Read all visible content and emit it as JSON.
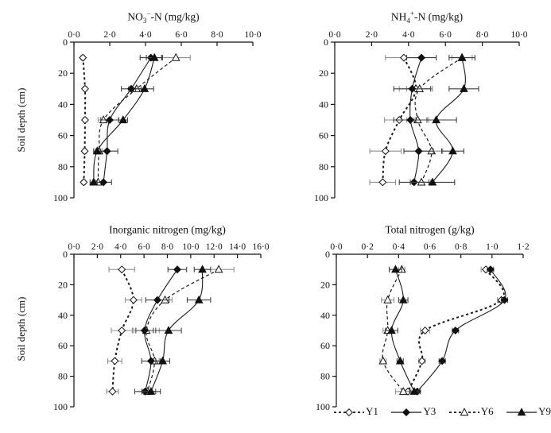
{
  "figure": {
    "y_axis_label": "Soil depth (cm)",
    "depth_ticks": {
      "values": [
        0,
        20,
        40,
        60,
        80,
        100
      ],
      "labels": [
        "0",
        "20",
        "40",
        "60",
        "80",
        "100"
      ]
    },
    "colors": {
      "line": "#1a1a1a",
      "error_open": "#8f8f8f",
      "error_filled": "#3f3f3f",
      "background": "#ffffff"
    }
  },
  "legend": {
    "items": [
      {
        "label": "Y1",
        "marker": "diamond",
        "fill": "open",
        "line": "dashed"
      },
      {
        "label": "Y3",
        "marker": "diamond",
        "fill": "filled",
        "line": "solid"
      },
      {
        "label": "Y6",
        "marker": "triangle",
        "fill": "open",
        "line": "dashed"
      },
      {
        "label": "Y9",
        "marker": "triangle",
        "fill": "filled",
        "line": "solid"
      }
    ]
  },
  "chart_data": [
    {
      "type": "line",
      "title": {
        "pre": "NO",
        "sub": "3",
        "sup": "−",
        "post": "-N (mg/kg)"
      },
      "xlabel": "NO3--N (mg/kg)",
      "ylabel": "Soil depth (cm)",
      "xlim": [
        0,
        10
      ],
      "ylim": [
        0,
        100
      ],
      "x_ticks": {
        "values": [
          0,
          2,
          4,
          6,
          8,
          10
        ],
        "labels": [
          "0·0",
          "2·0",
          "4·0",
          "6·0",
          "8·0",
          "10·0"
        ]
      },
      "depths": [
        10,
        30,
        50,
        70,
        90
      ],
      "series": [
        {
          "name": "Y1",
          "values": [
            0.5,
            0.62,
            0.62,
            0.6,
            0.55
          ],
          "errors": [
            0.1,
            0.1,
            0.1,
            0.1,
            0.1
          ]
        },
        {
          "name": "Y3",
          "values": [
            4.3,
            3.2,
            2.0,
            1.85,
            1.65
          ],
          "errors": [
            0.6,
            0.55,
            0.5,
            0.6,
            0.45
          ]
        },
        {
          "name": "Y6",
          "values": [
            5.7,
            3.5,
            1.65,
            1.4,
            1.35
          ],
          "errors": [
            0.8,
            0.45,
            0.3,
            0.2,
            0.25
          ]
        },
        {
          "name": "Y9",
          "values": [
            4.5,
            3.95,
            2.75,
            1.3,
            1.1
          ],
          "errors": [
            0.45,
            0.5,
            0.25,
            0.2,
            0.2
          ]
        }
      ]
    },
    {
      "type": "line",
      "title": {
        "pre": "NH",
        "sub": "4",
        "sup": "+",
        "post": "-N (mg/kg)"
      },
      "xlabel": "NH4+-N (mg/kg)",
      "ylabel": "Soil depth (cm)",
      "xlim": [
        0,
        10
      ],
      "ylim": [
        0,
        100
      ],
      "x_ticks": {
        "values": [
          0,
          2,
          4,
          6,
          8,
          10
        ],
        "labels": [
          "0·0",
          "2·0",
          "4·0",
          "6·0",
          "8·0",
          "10·0"
        ]
      },
      "depths": [
        10,
        30,
        50,
        70,
        90
      ],
      "series": [
        {
          "name": "Y1",
          "values": [
            3.75,
            4.4,
            3.5,
            2.75,
            2.6
          ],
          "errors": [
            1.0,
            0.9,
            0.8,
            0.85,
            0.7
          ]
        },
        {
          "name": "Y3",
          "values": [
            4.7,
            4.2,
            4.1,
            4.55,
            4.3
          ],
          "errors": [
            0.8,
            1.0,
            0.9,
            0.8,
            0.8
          ]
        },
        {
          "name": "Y6",
          "values": [
            6.9,
            4.6,
            4.5,
            5.25,
            4.7
          ],
          "errors": [
            0.55,
            0.7,
            0.6,
            0.6,
            0.5
          ]
        },
        {
          "name": "Y9",
          "values": [
            6.9,
            7.0,
            5.5,
            6.4,
            5.3
          ],
          "errors": [
            0.7,
            0.8,
            1.1,
            0.6,
            1.2
          ]
        }
      ]
    },
    {
      "type": "line",
      "title": {
        "pre": "Inorganic nitrogen (mg/kg)",
        "sub": "",
        "sup": "",
        "post": ""
      },
      "xlabel": "Inorganic nitrogen (mg/kg)",
      "ylabel": "Soil depth (cm)",
      "xlim": [
        0,
        16
      ],
      "ylim": [
        0,
        100
      ],
      "x_ticks": {
        "values": [
          0,
          2,
          4,
          6,
          8,
          10,
          12,
          14,
          16
        ],
        "labels": [
          "0·0",
          "2·0",
          "4·0",
          "6·0",
          "8·0",
          "10·0",
          "12·0",
          "14·0",
          "16·0"
        ]
      },
      "depths": [
        10,
        30,
        50,
        70,
        90
      ],
      "series": [
        {
          "name": "Y1",
          "values": [
            4.1,
            5.1,
            4.1,
            3.5,
            3.3
          ],
          "errors": [
            1.1,
            0.7,
            0.9,
            0.6,
            0.5
          ]
        },
        {
          "name": "Y3",
          "values": [
            8.85,
            7.15,
            6.05,
            6.6,
            6.1
          ],
          "errors": [
            0.8,
            1.0,
            0.75,
            0.8,
            0.9
          ]
        },
        {
          "name": "Y6",
          "values": [
            12.4,
            7.8,
            6.2,
            6.9,
            6.3
          ],
          "errors": [
            1.3,
            0.6,
            1.1,
            0.4,
            0.4
          ]
        },
        {
          "name": "Y9",
          "values": [
            11.0,
            10.7,
            8.1,
            7.6,
            6.6
          ],
          "errors": [
            0.7,
            1.0,
            1.1,
            0.6,
            0.8
          ]
        }
      ]
    },
    {
      "type": "line",
      "title": {
        "pre": "Total nitrogen (g/kg)",
        "sub": "",
        "sup": "",
        "post": ""
      },
      "xlabel": "Total nitrogen (g/kg)",
      "ylabel": "Soil depth (cm)",
      "xlim": [
        0,
        1.2
      ],
      "ylim": [
        0,
        100
      ],
      "x_ticks": {
        "values": [
          0,
          0.2,
          0.4,
          0.6,
          0.8,
          1.0,
          1.2
        ],
        "labels": [
          "0·0",
          "0·2",
          "0·4",
          "0·6",
          "0·8",
          "1·0",
          "1·2"
        ]
      },
      "depths": [
        10,
        30,
        50,
        70,
        90
      ],
      "series": [
        {
          "name": "Y1",
          "values": [
            0.96,
            1.06,
            0.57,
            0.55,
            0.46
          ],
          "errors": [
            0.03,
            0.025,
            0.03,
            0.02,
            0.04
          ]
        },
        {
          "name": "Y3",
          "values": [
            0.99,
            1.08,
            0.765,
            0.68,
            0.52
          ],
          "errors": [
            0.02,
            0.02,
            0.02,
            0.02,
            0.02
          ]
        },
        {
          "name": "Y6",
          "values": [
            0.42,
            0.33,
            0.33,
            0.3,
            0.43
          ],
          "errors": [
            0.02,
            0.04,
            0.03,
            0.02,
            0.05
          ]
        },
        {
          "name": "Y9",
          "values": [
            0.38,
            0.43,
            0.355,
            0.41,
            0.5
          ],
          "errors": [
            0.04,
            0.03,
            0.04,
            0.02,
            0.03
          ]
        }
      ]
    }
  ]
}
